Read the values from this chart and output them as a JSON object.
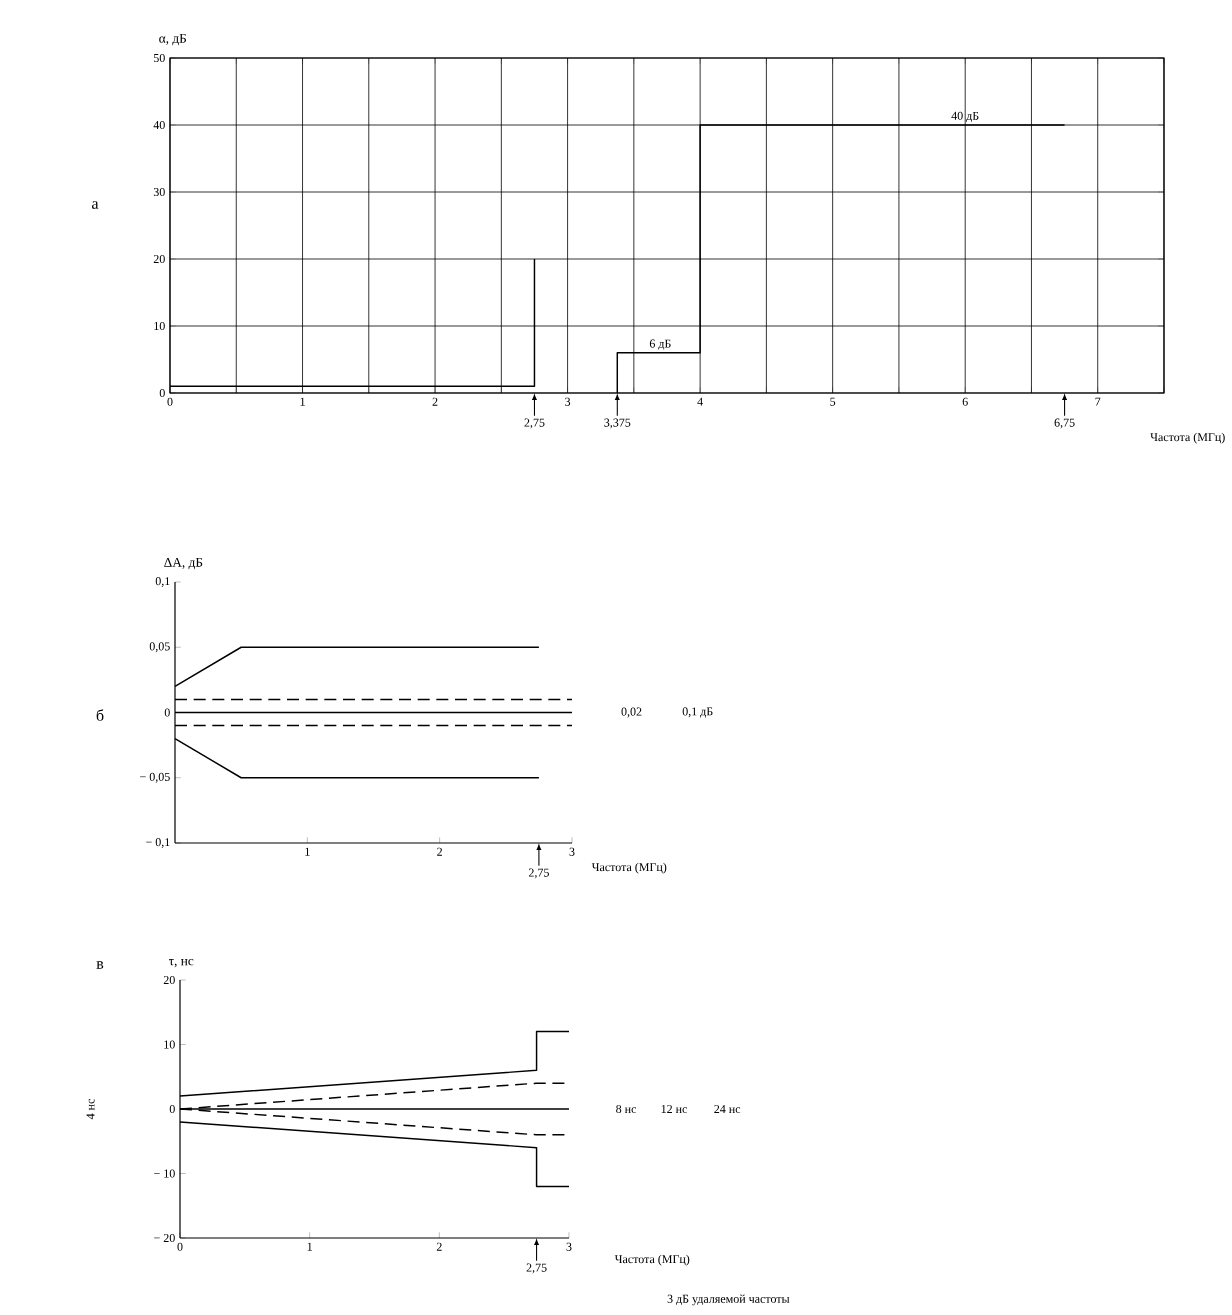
{
  "chart_data": [
    {
      "type": "line",
      "title": "а",
      "ylabel": "α, дБ",
      "xlabel": "Частота (МГц)",
      "grid": true,
      "xlim": [
        0,
        7.5
      ],
      "ylim": [
        0,
        50
      ],
      "xticks": [
        0,
        {
          "value": 0.5,
          "label": null
        },
        1,
        {
          "value": 1.5,
          "label": null
        },
        2,
        {
          "value": 2.5,
          "label": null
        },
        3,
        {
          "value": 3.5,
          "label": null
        },
        4,
        {
          "value": 4.5,
          "label": null
        },
        5,
        {
          "value": 5.5,
          "label": null
        },
        6,
        {
          "value": 6.5,
          "label": null
        },
        7,
        {
          "value": 7.5,
          "label": null
        }
      ],
      "yticks": [
        0,
        10,
        20,
        30,
        40,
        50
      ],
      "series": [
        {
          "color": "#000000",
          "line_style": "solid",
          "x": [
            0,
            2.75,
            2.75
          ],
          "values": [
            1,
            1,
            20
          ]
        },
        {
          "color": "#000000",
          "line_style": "solid",
          "x": [
            3.375,
            3.375,
            4,
            4,
            6.75
          ],
          "values": [
            0,
            6,
            6,
            40,
            40
          ]
        }
      ],
      "annotations": [
        {
          "text": "6 дБ",
          "x": 3.7,
          "y": 6
        },
        {
          "text": "40 дБ",
          "x": 6,
          "y": 40
        },
        "2,75",
        "3,375",
        "6,75"
      ]
    },
    {
      "type": "line",
      "title": "б",
      "ylabel": "ΔA, дБ",
      "xlabel": "Частота (МГц)",
      "xlim": [
        0,
        3
      ],
      "ylim": [
        -0.1,
        0.1
      ],
      "xticks": [
        1,
        2,
        3
      ],
      "yticks": [
        {
          "value": -0.1,
          "label": "− 0,1"
        },
        {
          "value": -0.05,
          "label": "− 0,05"
        },
        0,
        {
          "value": 0.05,
          "label": "0,05"
        },
        {
          "value": 0.1,
          "label": "0,1"
        }
      ],
      "series": [
        {
          "color": "#000000",
          "line_style": "solid",
          "x": [
            0,
            0.5,
            2.75
          ],
          "values": [
            0.02,
            0.05,
            0.05
          ]
        },
        {
          "color": "#000000",
          "line_style": "solid",
          "x": [
            0,
            0.5,
            2.75
          ],
          "values": [
            -0.02,
            -0.05,
            -0.05
          ]
        },
        {
          "color": "#000000",
          "line_style": "dashed",
          "x": [
            0,
            3
          ],
          "values": [
            0.01,
            0.01
          ]
        },
        {
          "color": "#000000",
          "line_style": "solid",
          "x": [
            0,
            3
          ],
          "values": [
            0,
            0
          ]
        },
        {
          "color": "#000000",
          "line_style": "dashed",
          "x": [
            0,
            3
          ],
          "values": [
            -0.01,
            -0.01
          ]
        }
      ],
      "annotations": [
        "0,02",
        "0,1 дБ",
        "2,75"
      ]
    },
    {
      "type": "line",
      "title": "в",
      "ylabel": "τ, нс",
      "xlabel": "Частота (МГц)",
      "xlim": [
        0,
        3
      ],
      "ylim": [
        -20,
        20
      ],
      "xticks": [
        0,
        1,
        2,
        3
      ],
      "yticks": [
        {
          "value": -20,
          "label": "− 20"
        },
        {
          "value": -10,
          "label": "− 10"
        },
        0,
        10,
        20
      ],
      "series": [
        {
          "color": "#000000",
          "line_style": "solid",
          "x": [
            0,
            2.75,
            2.75,
            3
          ],
          "values": [
            2,
            6,
            12,
            12
          ]
        },
        {
          "color": "#000000",
          "line_style": "dashed",
          "x": [
            0,
            2.75,
            3
          ],
          "values": [
            0,
            4,
            4
          ]
        },
        {
          "color": "#000000",
          "line_style": "solid",
          "x": [
            0,
            3
          ],
          "values": [
            0,
            0
          ]
        },
        {
          "color": "#000000",
          "line_style": "dashed",
          "x": [
            0,
            2.75,
            3
          ],
          "values": [
            0,
            -4,
            -4
          ]
        },
        {
          "color": "#000000",
          "line_style": "solid",
          "x": [
            0,
            2.75,
            2.75,
            3
          ],
          "values": [
            -2,
            -6,
            -12,
            -12
          ]
        }
      ],
      "annotations": [
        "4 нс",
        "8 нс",
        "12 нс",
        "24 нс",
        "3 дБ удаляемой частоты",
        "2,75"
      ]
    }
  ]
}
